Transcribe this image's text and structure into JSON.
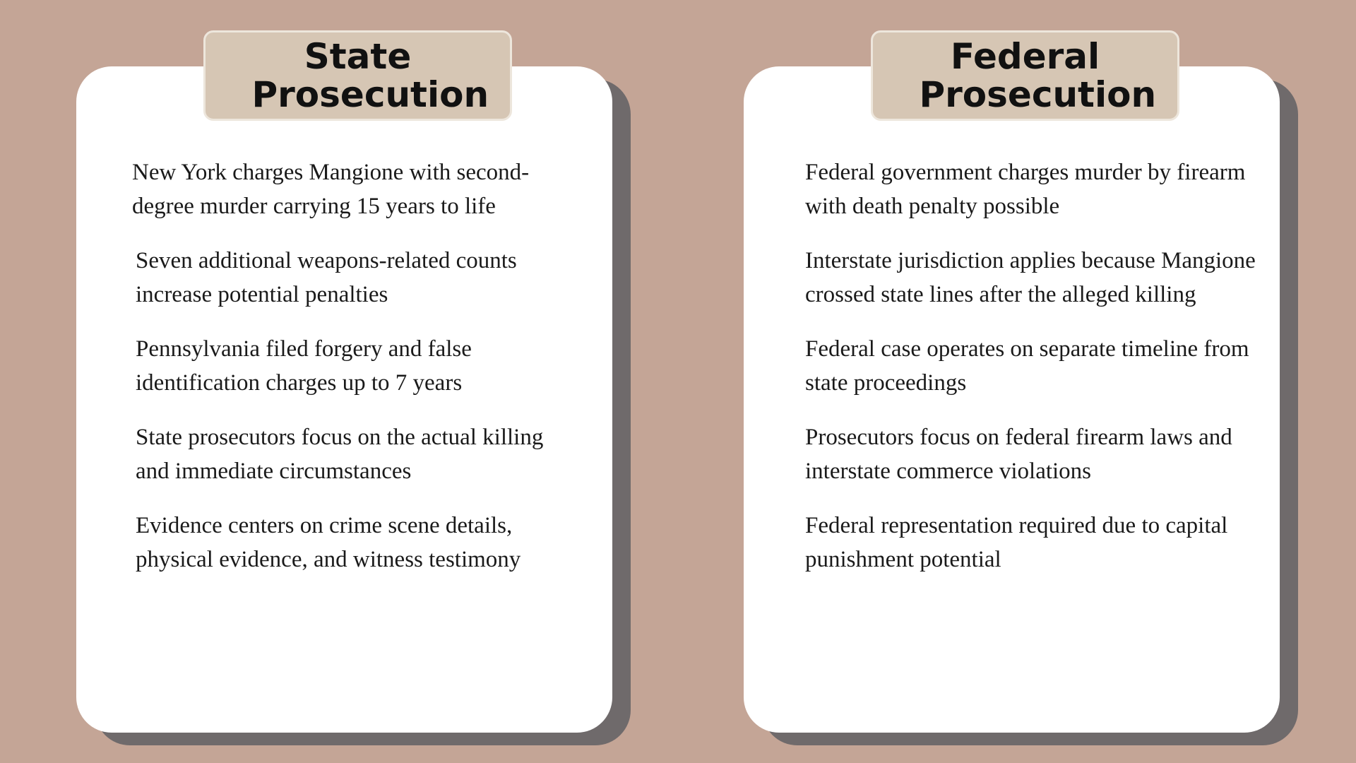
{
  "state": {
    "title": "State Prosecution",
    "items": [
      "New York charges Mangione with second-degree murder carrying 15 years to life",
      "Seven additional weapons-related counts increase potential penalties",
      "Pennsylvania filed forgery and false identification charges up to 7 years",
      "State prosecutors focus on the actual killing and immediate circumstances",
      "Evidence centers on crime scene details, physical evidence, and witness testimony"
    ]
  },
  "federal": {
    "title": "Federal Prosecution",
    "items": [
      "Federal government charges murder by firearm with death penalty possible",
      "Interstate jurisdiction applies because Mangione crossed state lines after the alleged killing",
      "Federal case operates on separate timeline from state proceedings",
      "Prosecutors focus on federal firearm laws and interstate commerce violations",
      "Federal representation required due to capital punishment potential"
    ]
  },
  "colors": {
    "background": "#c4a596",
    "card": "#ffffff",
    "shadow": "#6f6a6b",
    "tab": "#d6c6b4"
  }
}
